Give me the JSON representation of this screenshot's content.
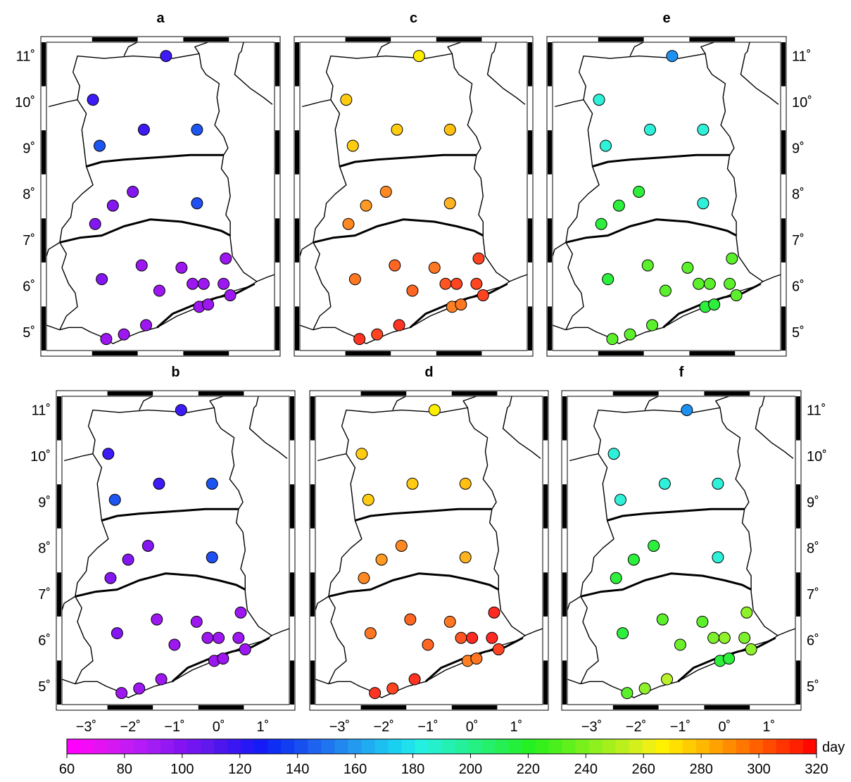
{
  "panels": [
    {
      "label": "a",
      "colors": [
        "#3c1bf6",
        "#3c1bf6",
        "#3c1bf6",
        "#1d55f0",
        "#1d55f0",
        "#8417f0",
        "#8417f0",
        "#8417f0",
        "#2050f2",
        "#8417f0",
        "#9c17f0",
        "#9c17f0",
        "#9c17f0",
        "#9c17f0",
        "#9c17f0",
        "#9c17f0",
        "#9c17f0",
        "#9c17f0",
        "#9c17f0",
        "#9c17f0",
        "#9c17f0",
        "#9c17f0",
        "#9c17f0"
      ]
    },
    {
      "label": "b",
      "colors": [
        "#3c1bf6",
        "#3c1bf6",
        "#3c1bf6",
        "#1d55f0",
        "#1d55f0",
        "#8417f0",
        "#8417f0",
        "#8417f0",
        "#2050f2",
        "#8417f0",
        "#9c17f0",
        "#9c17f0",
        "#9c17f0",
        "#9c17f0",
        "#9c17f0",
        "#9c17f0",
        "#9c17f0",
        "#9c17f0",
        "#9c17f0",
        "#9c17f0",
        "#9c17f0",
        "#9c17f0",
        "#9c17f0"
      ]
    },
    {
      "label": "c",
      "colors": [
        "#ffcc11",
        "#ffee00",
        "#ffcc11",
        "#ffc011",
        "#ffcc11",
        "#ff9a22",
        "#ff8822",
        "#ff8822",
        "#ffb322",
        "#ff7722",
        "#ff6622",
        "#ff7722",
        "#ff6622",
        "#ff5522",
        "#ff4422",
        "#ff4422",
        "#ff4422",
        "#ff4422",
        "#ff8022",
        "#ff7722",
        "#ff4422",
        "#ff3322",
        "#ff3322"
      ]
    },
    {
      "label": "d",
      "colors": [
        "#ffcc11",
        "#ffee00",
        "#ffcc11",
        "#ffc011",
        "#ffcc11",
        "#ff9a22",
        "#ff8822",
        "#ff8822",
        "#ffb322",
        "#ff7722",
        "#ff6622",
        "#ff7722",
        "#ff6622",
        "#ff5522",
        "#ff2a22",
        "#ff2a22",
        "#ff2a22",
        "#ff4422",
        "#ff8022",
        "#ff7722",
        "#ff4422",
        "#ff3322",
        "#ff3322"
      ]
    },
    {
      "label": "e",
      "colors": [
        "#2ff0d8",
        "#1d90f0",
        "#2ff0d8",
        "#2ff0d8",
        "#2ff0d8",
        "#2cf03c",
        "#2cf03c",
        "#2cf03c",
        "#2ff0d8",
        "#2cf03c",
        "#5cf02c",
        "#5cf02c",
        "#5cf02c",
        "#5cf02c",
        "#5cf02c",
        "#5cf02c",
        "#5cf02c",
        "#5cf02c",
        "#2cf03c",
        "#2cf03c",
        "#5cf02c",
        "#5cf02c",
        "#5cf02c"
      ]
    },
    {
      "label": "f",
      "colors": [
        "#2ff0d8",
        "#1d90f0",
        "#2ff0d8",
        "#2ff0d8",
        "#2ff0d8",
        "#2cf03c",
        "#2cf03c",
        "#2cf03c",
        "#2ff0d8",
        "#2cf03c",
        "#5cf02c",
        "#5cf02c",
        "#6cf02c",
        "#7cf02c",
        "#8ff02c",
        "#8ff02c",
        "#7cf02c",
        "#8ff02c",
        "#2cf03c",
        "#2cf03c",
        "#8ff02c",
        "#5cf02c",
        "#b8f02c"
      ]
    }
  ],
  "stations": [
    {
      "lon": -2.5,
      "lat": 10.05
    },
    {
      "lon": -0.85,
      "lat": 11.0
    },
    {
      "lon": -1.35,
      "lat": 9.4
    },
    {
      "lon": -0.15,
      "lat": 9.4
    },
    {
      "lon": -2.35,
      "lat": 9.05
    },
    {
      "lon": -2.05,
      "lat": 7.75
    },
    {
      "lon": -1.6,
      "lat": 8.05
    },
    {
      "lon": -2.45,
      "lat": 7.35
    },
    {
      "lon": -0.15,
      "lat": 7.8
    },
    {
      "lon": -2.3,
      "lat": 6.15
    },
    {
      "lon": -1.4,
      "lat": 6.45
    },
    {
      "lon": -0.5,
      "lat": 6.4
    },
    {
      "lon": -1.0,
      "lat": 5.9
    },
    {
      "lon": -0.25,
      "lat": 6.05
    },
    {
      "lon": 0.0,
      "lat": 6.05
    },
    {
      "lon": 0.5,
      "lat": 6.6
    },
    {
      "lon": 0.45,
      "lat": 6.05
    },
    {
      "lon": 0.6,
      "lat": 5.8
    },
    {
      "lon": -0.1,
      "lat": 5.55
    },
    {
      "lon": 0.1,
      "lat": 5.6
    },
    {
      "lon": -1.8,
      "lat": 4.95
    },
    {
      "lon": -2.2,
      "lat": 4.85
    },
    {
      "lon": -1.3,
      "lat": 5.15
    }
  ],
  "y_ticks": [
    "5˚",
    "6˚",
    "7˚",
    "8˚",
    "9˚",
    "10˚",
    "11˚"
  ],
  "x_ticks": [
    "−3˚",
    "−2˚",
    "−1˚",
    "0˚",
    "1˚"
  ],
  "colorbar": {
    "unit": "day",
    "min": 60,
    "max": 320,
    "ticks": [
      "60",
      "80",
      "100",
      "120",
      "140",
      "160",
      "180",
      "200",
      "220",
      "240",
      "260",
      "280",
      "300",
      "320"
    ],
    "colors": [
      "#ff00ff",
      "#f30af6",
      "#e412f3",
      "#d518f2",
      "#c41af4",
      "#b41bf7",
      "#a21cf4",
      "#9318f3",
      "#8313f0",
      "#7315f0",
      "#6018ec",
      "#4c16ec",
      "#3a16f2",
      "#2618f6",
      "#141bf6",
      "#0e2df5",
      "#113ef0",
      "#1850f0",
      "#1d63f0",
      "#1f75f0",
      "#2188f0",
      "#239af0",
      "#20acf0",
      "#1cbff0",
      "#1ad0f0",
      "#1fe0ec",
      "#24f0e2",
      "#24f0cc",
      "#24f0b4",
      "#24f09c",
      "#24f084",
      "#24f06c",
      "#24f054",
      "#24f03c",
      "#24f024",
      "#36f01c",
      "#4af01c",
      "#60f01c",
      "#78f01c",
      "#8ef01c",
      "#a4f01c",
      "#bcf01c",
      "#d4f01c",
      "#ecf014",
      "#fff200",
      "#ffe000",
      "#ffcc00",
      "#ffb800",
      "#ffa200",
      "#ff8c00",
      "#ff7600",
      "#ff6000",
      "#ff4a00",
      "#ff3400",
      "#ff2000",
      "#ff0800"
    ]
  }
}
